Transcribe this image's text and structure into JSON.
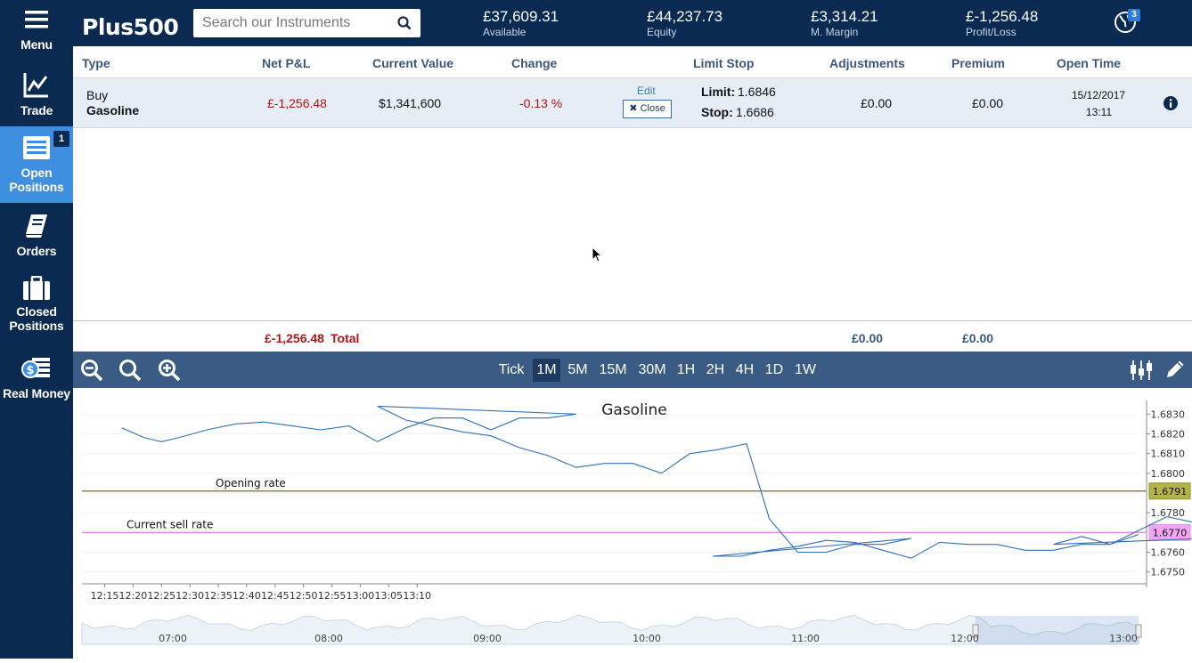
{
  "sidebar": {
    "items": [
      {
        "label": "Menu",
        "icon": "hamburger-icon"
      },
      {
        "label": "Trade",
        "icon": "line-chart-icon"
      },
      {
        "label": "Open Positions",
        "icon": "list-icon",
        "badge": "1"
      },
      {
        "label": "Orders",
        "icon": "book-icon"
      },
      {
        "label": "Closed Positions",
        "icon": "briefcase-icon"
      },
      {
        "label": "Real Money",
        "icon": "money-icon"
      }
    ]
  },
  "header": {
    "logo_text": "Plus500",
    "search_placeholder": "Search our Instruments",
    "stats": [
      {
        "value": "£37,609.31",
        "label": "Available"
      },
      {
        "value": "£44,237.73",
        "label": "Equity"
      },
      {
        "value": "£3,314.21",
        "label": "M. Margin"
      },
      {
        "value": "£-1,256.48",
        "label": "Profit/Loss"
      }
    ],
    "globe_badge": "3"
  },
  "table": {
    "headers": [
      "Type",
      "Net P&L",
      "Current Value",
      "Change",
      "Limit Stop",
      "Adjustments",
      "Premium",
      "Open Time"
    ],
    "row": {
      "type": "Buy",
      "instrument": "Gasoline",
      "net_pl": "£-1,256.48",
      "current_value": "$1,341,600",
      "change": "-0.13 %",
      "edit_label": "Edit",
      "close_label": "Close",
      "limit_label": "Limit:",
      "limit_value": "1.6846",
      "stop_label": "Stop:",
      "stop_value": "1.6686",
      "adjustments": "£0.00",
      "premium": "£0.00",
      "open_date": "15/12/2017",
      "open_time": "13:11"
    },
    "totals": {
      "net_pl": "£-1,256.48",
      "label": "Total",
      "adjustments": "£0.00",
      "premium": "£0.00"
    }
  },
  "chart_toolbar": {
    "timeframes": [
      "Tick",
      "1M",
      "5M",
      "15M",
      "30M",
      "1H",
      "2H",
      "4H",
      "1D",
      "1W"
    ],
    "active": "1M"
  },
  "chart_data": {
    "type": "line",
    "title": "Gasoline",
    "x_ticks": [
      "12:15",
      "12:20",
      "12:25",
      "12:30",
      "12:35",
      "12:40",
      "12:45",
      "12:50",
      "12:55",
      "13:00",
      "13:05",
      "13:10"
    ],
    "y_ticks": [
      "1.6830",
      "1.6820",
      "1.6810",
      "1.6800",
      "1.6780",
      "1.6760",
      "1.6750"
    ],
    "ylim": [
      1.6744,
      1.6836
    ],
    "series": [
      {
        "values": [
          [
            12.18,
            1.6823
          ],
          [
            12.22,
            1.6818
          ],
          [
            12.25,
            1.6816
          ],
          [
            12.28,
            1.6818
          ],
          [
            12.33,
            1.6822
          ],
          [
            12.38,
            1.6825
          ],
          [
            12.43,
            1.6826
          ],
          [
            12.48,
            1.6824
          ],
          [
            12.53,
            1.6822
          ],
          [
            12.58,
            1.6824
          ],
          [
            12.63,
            1.6816
          ],
          [
            12.68,
            1.6823
          ],
          [
            12.73,
            1.6828
          ],
          [
            12.78,
            1.6828
          ],
          [
            12.83,
            1.6822
          ],
          [
            12.88,
            1.6828
          ],
          [
            12.93,
            1.6828
          ],
          [
            12.98,
            1.683
          ],
          [
            13.03,
            1.6834
          ],
          [
            13.08,
            1.6827
          ],
          [
            13.13,
            1.6824
          ],
          [
            13.18,
            1.6821
          ],
          [
            13.23,
            1.6819
          ],
          [
            13.28,
            1.6813
          ],
          [
            13.33,
            1.6809
          ],
          [
            13.38,
            1.6803
          ],
          [
            13.43,
            1.6805
          ],
          [
            13.48,
            1.6805
          ],
          [
            13.53,
            1.68
          ],
          [
            13.58,
            1.681
          ],
          [
            13.63,
            1.6812
          ],
          [
            13.68,
            1.6815
          ],
          [
            13.72,
            1.6777
          ],
          [
            13.77,
            1.676
          ],
          [
            13.82,
            1.676
          ],
          [
            13.87,
            1.6764
          ],
          [
            13.92,
            1.6764
          ],
          [
            13.97,
            1.6767
          ],
          [
            14.02,
            1.6758
          ],
          [
            14.07,
            1.6758
          ],
          [
            14.12,
            1.6761
          ],
          [
            14.17,
            1.6763
          ],
          [
            14.22,
            1.6766
          ],
          [
            14.27,
            1.6765
          ],
          [
            14.32,
            1.6761
          ],
          [
            14.37,
            1.6757
          ],
          [
            14.42,
            1.6765
          ],
          [
            14.47,
            1.6764
          ],
          [
            14.52,
            1.6764
          ],
          [
            14.57,
            1.6761
          ],
          [
            14.62,
            1.6761
          ],
          [
            14.67,
            1.6764
          ],
          [
            14.72,
            1.6764
          ],
          [
            14.77,
            1.6771
          ],
          [
            14.82,
            1.6778
          ],
          [
            14.87,
            1.6775
          ],
          [
            14.92,
            1.6777
          ],
          [
            14.97,
            1.6768
          ],
          [
            15.02,
            1.6764
          ],
          [
            15.07,
            1.6768
          ],
          [
            15.12,
            1.6764
          ],
          [
            15.17,
            1.6769
          ]
        ]
      }
    ],
    "lines": [
      {
        "label": "Opening rate",
        "value": 1.6791,
        "tag": "1.6791",
        "color": "#8e8e2a"
      },
      {
        "label": "Current sell rate",
        "value": 1.677,
        "tag": "1.6770",
        "color": "#e58de5"
      }
    ],
    "navigator_ticks": [
      "07:00",
      "08:00",
      "09:00",
      "10:00",
      "11:00",
      "12:00",
      "13:00"
    ],
    "line_color": "#2f6fb8"
  }
}
